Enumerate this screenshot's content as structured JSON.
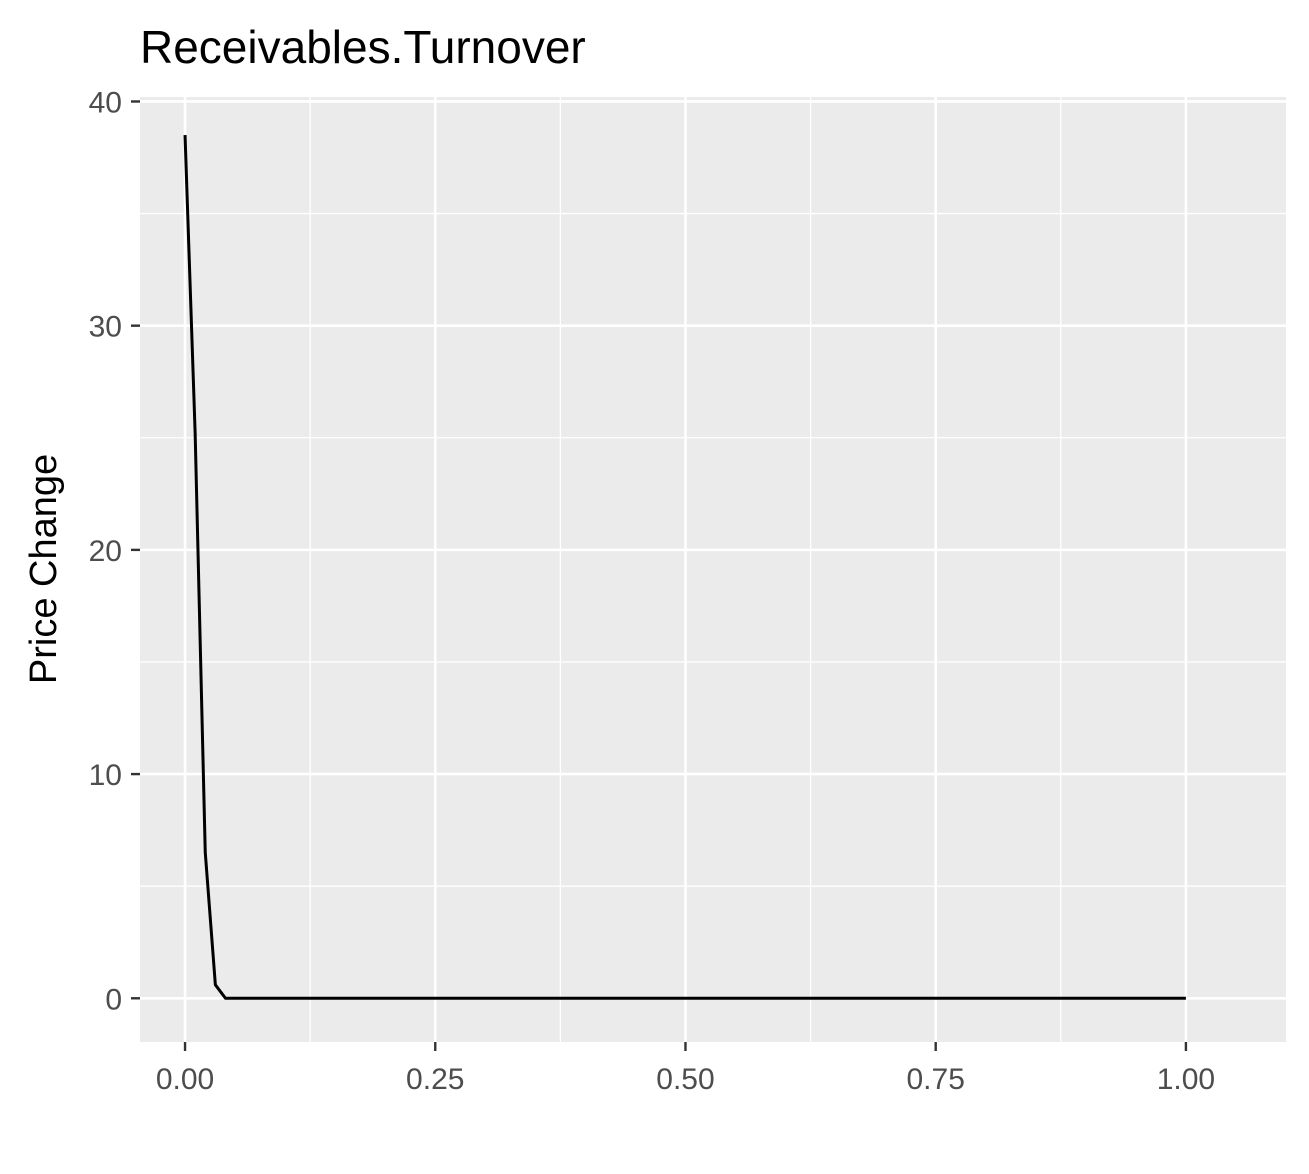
{
  "chart_data": {
    "type": "line",
    "title": "Receivables.Turnover",
    "xlabel": "",
    "ylabel": "Price Change",
    "xlim": [
      -0.045,
      1.1
    ],
    "ylim": [
      -1.95,
      40.2
    ],
    "x_ticks": [
      0.0,
      0.25,
      0.5,
      0.75,
      1.0
    ],
    "x_tick_labels": [
      "0.00",
      "0.25",
      "0.50",
      "0.75",
      "1.00"
    ],
    "y_ticks": [
      0,
      10,
      20,
      30,
      40
    ],
    "y_tick_labels": [
      "0",
      "10",
      "20",
      "30",
      "40"
    ],
    "grid": true,
    "legend": "none",
    "colors": {
      "panel_background": "#ebebeb",
      "grid": "#ffffff",
      "line": "#000000",
      "tick_label": "#4d4d4d"
    },
    "series": [
      {
        "x": [
          0.0,
          0.0101,
          0.0202,
          0.0303,
          0.0404,
          0.0505,
          0.1,
          0.2,
          0.3,
          0.4,
          0.5,
          0.6,
          0.7,
          0.8,
          0.9,
          1.0
        ],
        "y": [
          38.5,
          25.2,
          6.5,
          0.6,
          0.0,
          0.0,
          0.0,
          0.0,
          0.0,
          0.0,
          0.0,
          0.0,
          0.0,
          0.0,
          0.0,
          0.0
        ]
      }
    ]
  }
}
